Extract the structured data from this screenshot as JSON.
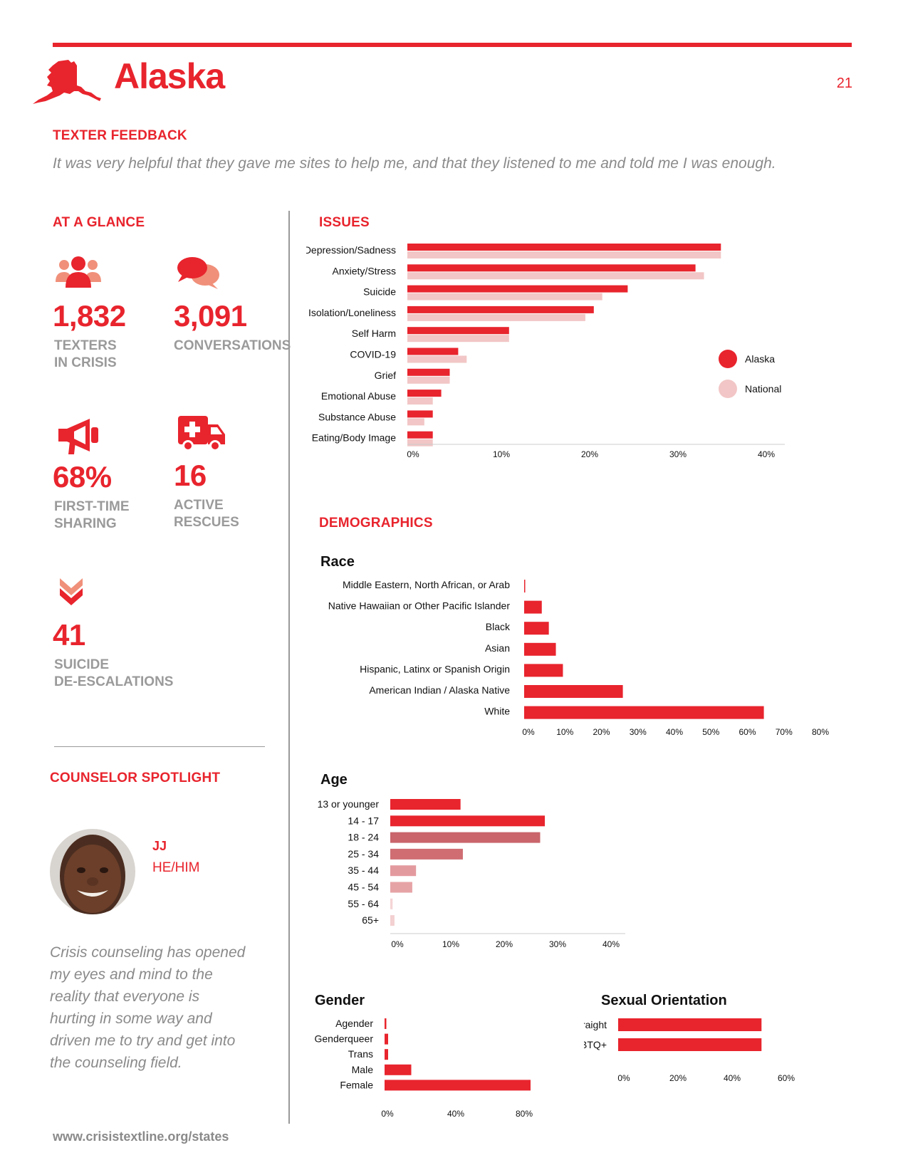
{
  "header": {
    "state": "Alaska",
    "page_number": "21"
  },
  "feedback": {
    "heading": "TEXTER FEEDBACK",
    "quote": "It was very helpful that they gave me sites to help me, and that they listened to me and told me I was enough."
  },
  "glance": {
    "heading": "AT A GLANCE",
    "texters": {
      "value": "1,832",
      "label1": "TEXTERS",
      "label2": "IN CRISIS"
    },
    "conversations": {
      "value": "3,091",
      "label1": "CONVERSATIONS"
    },
    "first_time": {
      "value": "68%",
      "label1": "FIRST-TIME",
      "label2": "SHARING"
    },
    "rescues": {
      "value": "16",
      "label1": "ACTIVE",
      "label2": "RESCUES"
    },
    "deescalations": {
      "value": "41",
      "label1": "SUICIDE",
      "label2": "DE-ESCALATIONS"
    }
  },
  "spotlight": {
    "heading": "COUNSELOR SPOTLIGHT",
    "name": "JJ",
    "pronouns": "HE/HIM",
    "quote": "Crisis counseling has opened my eyes and mind to the reality that everyone is hurting in some way and driven me to try and get into the counseling field."
  },
  "footer": {
    "url": "www.crisistextline.org/states"
  },
  "colors": {
    "accent": "#e8242d",
    "national": "#f2c6c6",
    "muted": "#9a9a9a"
  },
  "icons": [
    "state-outline-icon",
    "people-icon",
    "chat-bubbles-icon",
    "megaphone-icon",
    "ambulance-icon",
    "double-chevron-down-icon"
  ],
  "chart_data": [
    {
      "id": "issues",
      "heading": "ISSUES",
      "type": "bar",
      "orientation": "horizontal",
      "categories": [
        "Depression/Sadness",
        "Anxiety/Stress",
        "Suicide",
        "Isolation/Loneliness",
        "Self Harm",
        "COVID-19",
        "Grief",
        "Emotional Abuse",
        "Substance Abuse",
        "Eating/Body Image"
      ],
      "series": [
        {
          "name": "Alaska",
          "color": "#e8242d",
          "values": [
            37,
            34,
            26,
            22,
            12,
            6,
            5,
            4,
            3,
            3
          ]
        },
        {
          "name": "National",
          "color": "#f2c6c6",
          "values": [
            37,
            35,
            23,
            21,
            12,
            7,
            5,
            3,
            2,
            3
          ]
        }
      ],
      "xlim": [
        0,
        40
      ],
      "ticks": [
        "0%",
        "10%",
        "20%",
        "30%",
        "40%"
      ],
      "legend": "right"
    },
    {
      "id": "race",
      "heading": "DEMOGRAPHICS",
      "title": "Race",
      "type": "bar",
      "orientation": "horizontal",
      "categories": [
        "Middle Eastern, North African, or Arab",
        "Native Hawaiian or Other Pacific Islander",
        "Black",
        "Asian",
        "Hispanic, Latinx or Spanish Origin",
        "American Indian / Alaska Native",
        "White"
      ],
      "values": [
        0.3,
        5,
        7,
        9,
        11,
        28,
        68
      ],
      "xlim": [
        0,
        80
      ],
      "ticks": [
        "0%",
        "10%",
        "20%",
        "30%",
        "40%",
        "50%",
        "60%",
        "70%",
        "80%"
      ]
    },
    {
      "id": "age",
      "title": "Age",
      "type": "bar",
      "orientation": "horizontal",
      "categories": [
        "13 or younger",
        "14 - 17",
        "18 - 24",
        "25 - 34",
        "35 - 44",
        "45 - 54",
        "55 - 64",
        "65+"
      ],
      "values": [
        15,
        33,
        32,
        15.5,
        5.5,
        4.7,
        0.5,
        0.9
      ],
      "colors": [
        "#e8242d",
        "#e8242d",
        "#c9656b",
        "#cf6d73",
        "#e39a9e",
        "#e6a3a6",
        "#f5d4d5",
        "#f3d0d1"
      ],
      "xlim": [
        0,
        45
      ],
      "ticks": [
        "0%",
        "10%",
        "20%",
        "30%",
        "40%"
      ]
    },
    {
      "id": "gender",
      "title": "Gender",
      "type": "bar",
      "orientation": "horizontal",
      "categories": [
        "Agender",
        "Genderqueer",
        "Trans",
        "Male",
        "Female"
      ],
      "values": [
        1,
        2,
        2,
        15,
        82
      ],
      "xlim": [
        0,
        100
      ],
      "ticks": [
        "0%",
        "40%",
        "80%"
      ]
    },
    {
      "id": "orientation",
      "title": "Sexual Orientation",
      "type": "bar",
      "orientation": "horizontal",
      "categories": [
        "Straight",
        "LGBTQ+"
      ],
      "values": [
        52,
        52
      ],
      "xlim": [
        0,
        62
      ],
      "ticks": [
        "0%",
        "20%",
        "40%",
        "60%"
      ]
    }
  ]
}
